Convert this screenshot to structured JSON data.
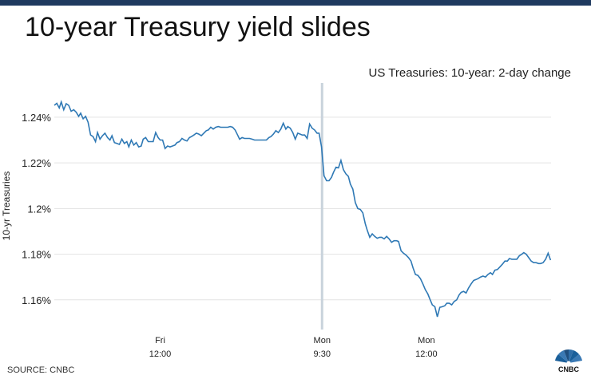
{
  "header": {
    "title": "10-year Treasury yield slides"
  },
  "chart_data": {
    "type": "line",
    "title": "US Treasuries: 10-year: 2-day change",
    "ylabel": "10-yr Treasuries",
    "xlabel": "",
    "ylim": [
      1.147,
      1.255
    ],
    "xlim": [
      0,
      100
    ],
    "y_ticks": [
      {
        "value": 1.24,
        "label": "1.24%"
      },
      {
        "value": 1.22,
        "label": "1.22%"
      },
      {
        "value": 1.2,
        "label": "1.2%"
      },
      {
        "value": 1.18,
        "label": "1.18%"
      },
      {
        "value": 1.16,
        "label": "1.16%"
      }
    ],
    "x_ticks": [
      {
        "x": 21.3,
        "line1": "Fri",
        "line2": "12:00"
      },
      {
        "x": 53.9,
        "line1": "Mon",
        "line2": "9:30"
      },
      {
        "x": 74.9,
        "line1": "Mon",
        "line2": "12:00"
      }
    ],
    "marker": {
      "x": 53.9
    },
    "grid": true,
    "series": [
      {
        "color": "#2f79b5",
        "points": [
          [
            0,
            1.2452
          ],
          [
            0.5,
            1.2461
          ],
          [
            1.0,
            1.2441
          ],
          [
            1.4,
            1.2467
          ],
          [
            1.9,
            1.2433
          ],
          [
            2.4,
            1.2459
          ],
          [
            2.9,
            1.2452
          ],
          [
            3.4,
            1.2426
          ],
          [
            3.9,
            1.2433
          ],
          [
            4.4,
            1.2422
          ],
          [
            4.9,
            1.2404
          ],
          [
            5.3,
            1.2418
          ],
          [
            5.8,
            1.2393
          ],
          [
            6.3,
            1.2404
          ],
          [
            6.8,
            1.2378
          ],
          [
            7.3,
            1.2322
          ],
          [
            7.8,
            1.2315
          ],
          [
            8.3,
            1.2293
          ],
          [
            8.7,
            1.2333
          ],
          [
            9.2,
            1.2304
          ],
          [
            9.7,
            1.2319
          ],
          [
            10.2,
            1.233
          ],
          [
            10.7,
            1.2311
          ],
          [
            11.2,
            1.23
          ],
          [
            11.6,
            1.2319
          ],
          [
            12.1,
            1.2289
          ],
          [
            12.6,
            1.2285
          ],
          [
            13.1,
            1.2281
          ],
          [
            13.6,
            1.2304
          ],
          [
            14.1,
            1.2285
          ],
          [
            14.6,
            1.2293
          ],
          [
            15.0,
            1.227
          ],
          [
            15.5,
            1.23
          ],
          [
            16.0,
            1.2278
          ],
          [
            16.5,
            1.2289
          ],
          [
            17.0,
            1.227
          ],
          [
            17.5,
            1.2274
          ],
          [
            17.9,
            1.2304
          ],
          [
            18.4,
            1.2311
          ],
          [
            18.9,
            1.2293
          ],
          [
            19.4,
            1.2293
          ],
          [
            19.9,
            1.2293
          ],
          [
            20.4,
            1.2333
          ],
          [
            20.9,
            1.2311
          ],
          [
            21.3,
            1.23
          ],
          [
            21.8,
            1.23
          ],
          [
            22.3,
            1.2263
          ],
          [
            22.8,
            1.2274
          ],
          [
            23.3,
            1.227
          ],
          [
            23.8,
            1.2274
          ],
          [
            24.3,
            1.2278
          ],
          [
            24.7,
            1.2289
          ],
          [
            25.2,
            1.2293
          ],
          [
            25.7,
            1.2307
          ],
          [
            26.2,
            1.23
          ],
          [
            26.7,
            1.2296
          ],
          [
            27.2,
            1.2311
          ],
          [
            27.6,
            1.2315
          ],
          [
            28.1,
            1.2322
          ],
          [
            28.6,
            1.233
          ],
          [
            29.1,
            1.2326
          ],
          [
            29.6,
            1.2319
          ],
          [
            30.1,
            1.233
          ],
          [
            30.6,
            1.2341
          ],
          [
            31.0,
            1.2344
          ],
          [
            31.5,
            1.2356
          ],
          [
            32.0,
            1.2348
          ],
          [
            32.5,
            1.2356
          ],
          [
            33.0,
            1.2359
          ],
          [
            33.5,
            1.2356
          ],
          [
            33.9,
            1.2356
          ],
          [
            34.4,
            1.2356
          ],
          [
            34.9,
            1.2356
          ],
          [
            35.4,
            1.2359
          ],
          [
            35.9,
            1.2356
          ],
          [
            36.4,
            1.2344
          ],
          [
            36.9,
            1.2322
          ],
          [
            37.3,
            1.2304
          ],
          [
            37.8,
            1.2311
          ],
          [
            38.3,
            1.2307
          ],
          [
            38.8,
            1.2307
          ],
          [
            39.3,
            1.2307
          ],
          [
            39.8,
            1.2304
          ],
          [
            40.3,
            1.23
          ],
          [
            40.7,
            1.23
          ],
          [
            41.2,
            1.23
          ],
          [
            41.7,
            1.23
          ],
          [
            42.2,
            1.23
          ],
          [
            42.7,
            1.23
          ],
          [
            43.2,
            1.2311
          ],
          [
            43.6,
            1.2315
          ],
          [
            44.1,
            1.2326
          ],
          [
            44.6,
            1.2341
          ],
          [
            45.1,
            1.2333
          ],
          [
            45.6,
            1.2348
          ],
          [
            46.1,
            1.2374
          ],
          [
            46.6,
            1.2348
          ],
          [
            47.0,
            1.2359
          ],
          [
            47.5,
            1.2352
          ],
          [
            48.0,
            1.2333
          ],
          [
            48.5,
            1.2304
          ],
          [
            49.0,
            1.233
          ],
          [
            49.5,
            1.2326
          ],
          [
            49.9,
            1.2322
          ],
          [
            50.4,
            1.2322
          ],
          [
            50.9,
            1.2307
          ],
          [
            51.4,
            1.237
          ],
          [
            51.9,
            1.2352
          ],
          [
            52.4,
            1.2344
          ],
          [
            52.9,
            1.233
          ],
          [
            53.3,
            1.233
          ],
          [
            53.8,
            1.227
          ],
          [
            54.3,
            1.2144
          ],
          [
            54.8,
            1.2122
          ],
          [
            55.3,
            1.2122
          ],
          [
            55.8,
            1.2137
          ],
          [
            56.2,
            1.2159
          ],
          [
            56.7,
            1.2181
          ],
          [
            57.2,
            1.2178
          ],
          [
            57.7,
            1.2211
          ],
          [
            58.2,
            1.217
          ],
          [
            58.7,
            1.2152
          ],
          [
            59.2,
            1.2141
          ],
          [
            59.6,
            1.2107
          ],
          [
            60.1,
            1.2085
          ],
          [
            60.6,
            1.2026
          ],
          [
            61.1,
            1.2
          ],
          [
            61.6,
            1.1996
          ],
          [
            62.1,
            1.1981
          ],
          [
            62.6,
            1.1933
          ],
          [
            63.0,
            1.1904
          ],
          [
            63.5,
            1.1874
          ],
          [
            64.0,
            1.1889
          ],
          [
            64.5,
            1.1878
          ],
          [
            65.0,
            1.187
          ],
          [
            65.5,
            1.1874
          ],
          [
            65.9,
            1.1874
          ],
          [
            66.4,
            1.1867
          ],
          [
            66.9,
            1.1878
          ],
          [
            67.4,
            1.1867
          ],
          [
            67.9,
            1.1852
          ],
          [
            68.4,
            1.1859
          ],
          [
            68.9,
            1.1859
          ],
          [
            69.3,
            1.1856
          ],
          [
            69.8,
            1.1815
          ],
          [
            70.3,
            1.1804
          ],
          [
            70.8,
            1.1796
          ],
          [
            71.3,
            1.1785
          ],
          [
            71.8,
            1.177
          ],
          [
            72.2,
            1.1741
          ],
          [
            72.7,
            1.1711
          ],
          [
            73.2,
            1.1707
          ],
          [
            73.7,
            1.1693
          ],
          [
            74.2,
            1.167
          ],
          [
            74.7,
            1.1644
          ],
          [
            75.2,
            1.1626
          ],
          [
            75.6,
            1.1604
          ],
          [
            76.1,
            1.1578
          ],
          [
            76.6,
            1.157
          ],
          [
            77.1,
            1.1526
          ],
          [
            77.6,
            1.1567
          ],
          [
            78.1,
            1.157
          ],
          [
            78.6,
            1.1574
          ],
          [
            79.0,
            1.1585
          ],
          [
            79.5,
            1.1585
          ],
          [
            80.0,
            1.1578
          ],
          [
            80.5,
            1.1593
          ],
          [
            81.0,
            1.16
          ],
          [
            81.5,
            1.1622
          ],
          [
            81.9,
            1.1633
          ],
          [
            82.4,
            1.1637
          ],
          [
            82.9,
            1.163
          ],
          [
            83.4,
            1.1652
          ],
          [
            83.9,
            1.167
          ],
          [
            84.4,
            1.1685
          ],
          [
            84.9,
            1.1689
          ],
          [
            85.3,
            1.1693
          ],
          [
            85.8,
            1.17
          ],
          [
            86.3,
            1.1704
          ],
          [
            86.8,
            1.17
          ],
          [
            87.3,
            1.1711
          ],
          [
            87.8,
            1.1719
          ],
          [
            88.2,
            1.1711
          ],
          [
            88.7,
            1.173
          ],
          [
            89.2,
            1.1733
          ],
          [
            89.7,
            1.1744
          ],
          [
            90.2,
            1.1756
          ],
          [
            90.7,
            1.177
          ],
          [
            91.2,
            1.177
          ],
          [
            91.6,
            1.1781
          ],
          [
            92.1,
            1.1778
          ],
          [
            92.6,
            1.1778
          ],
          [
            93.1,
            1.1778
          ],
          [
            93.6,
            1.1793
          ],
          [
            94.1,
            1.18
          ],
          [
            94.5,
            1.1807
          ],
          [
            95.0,
            1.18
          ],
          [
            95.5,
            1.1785
          ],
          [
            96.0,
            1.177
          ],
          [
            96.5,
            1.1763
          ],
          [
            97.0,
            1.1763
          ],
          [
            97.5,
            1.1759
          ],
          [
            97.9,
            1.1759
          ],
          [
            98.4,
            1.1763
          ],
          [
            98.9,
            1.1778
          ],
          [
            99.4,
            1.1804
          ],
          [
            99.9,
            1.1774
          ]
        ]
      }
    ]
  },
  "footer": {
    "source": "SOURCE: CNBC",
    "logo_text": "CNBC"
  }
}
